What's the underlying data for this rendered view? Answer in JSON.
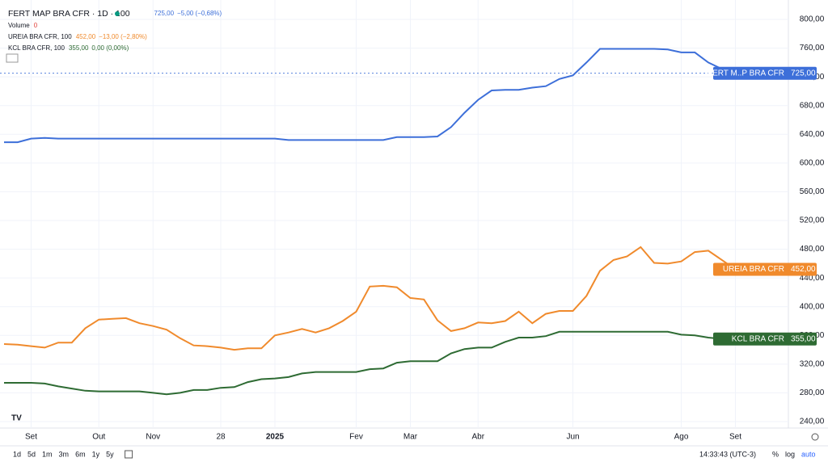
{
  "chart_data": {
    "type": "line",
    "legend": [
      {
        "title": "FERT MAP BRA CFR · 1D · 100",
        "last": "725,00",
        "change": "−5,00 (−0,68%)",
        "color": "#3d6fd9"
      },
      {
        "title": "Volume",
        "last": "0",
        "color": "#e0413c"
      },
      {
        "title": "UREIA BRA CFR, 100",
        "last": "452,00",
        "change": "−13,00 (−2,80%)",
        "color": "#f08a2c"
      },
      {
        "title": "KCL BRA CFR, 100",
        "last": "355,00",
        "change": "0,00 (0,00%)",
        "color": "#2e6b33"
      }
    ],
    "categories": [
      null,
      null,
      "Set",
      null,
      null,
      null,
      null,
      "Out",
      null,
      null,
      null,
      "Nov",
      null,
      null,
      null,
      null,
      "28",
      null,
      null,
      null,
      "2025",
      null,
      null,
      null,
      null,
      null,
      "Fev",
      null,
      null,
      null,
      "Mar",
      null,
      null,
      null,
      null,
      "Abr",
      null,
      null,
      null,
      null,
      null,
      null,
      "Jun",
      null,
      null,
      null,
      null,
      null,
      null,
      null,
      "Ago",
      null,
      null,
      null,
      "Set"
    ],
    "series": [
      {
        "name": "FERT M..P BRA CFR",
        "color": "#3d6fd9",
        "last_label": "725,00",
        "values": [
          629,
          629,
          634,
          635,
          634,
          634,
          634,
          634,
          634,
          634,
          634,
          634,
          634,
          634,
          634,
          634,
          634,
          634,
          634,
          634,
          634,
          632,
          632,
          632,
          632,
          632,
          632,
          632,
          632,
          636,
          636,
          636,
          637,
          650,
          670,
          688,
          701,
          702,
          702,
          705,
          707,
          717,
          722,
          740,
          759,
          759,
          759,
          759,
          759,
          758,
          754,
          754,
          740,
          731,
          725
        ]
      },
      {
        "name": "UREIA BRA CFR",
        "color": "#f08a2c",
        "last_label": "452,00",
        "values": [
          348,
          347,
          345,
          343,
          350,
          350,
          370,
          382,
          383,
          384,
          377,
          373,
          368,
          356,
          346,
          345,
          343,
          340,
          342,
          342,
          360,
          364,
          369,
          364,
          370,
          380,
          393,
          428,
          429,
          427,
          412,
          410,
          381,
          366,
          370,
          378,
          377,
          380,
          393,
          377,
          390,
          394,
          394,
          415,
          450,
          465,
          470,
          483,
          461,
          460,
          463,
          476,
          478,
          465,
          452
        ]
      },
      {
        "name": "KCL BRA CFR",
        "color": "#2e6b33",
        "last_label": "355,00",
        "values": [
          294,
          294,
          294,
          293,
          289,
          286,
          283,
          282,
          282,
          282,
          282,
          280,
          278,
          280,
          284,
          284,
          287,
          288,
          295,
          299,
          300,
          302,
          307,
          309,
          309,
          309,
          309,
          313,
          314,
          322,
          324,
          324,
          324,
          335,
          341,
          343,
          343,
          351,
          357,
          357,
          359,
          365,
          365,
          365,
          365,
          365,
          365,
          365,
          365,
          365,
          361,
          360,
          357,
          355,
          355
        ]
      }
    ],
    "ylim": [
      240,
      800
    ],
    "yticks": [
      {
        "value": 240,
        "label": "240,00"
      },
      {
        "value": 280,
        "label": "280,00"
      },
      {
        "value": 320,
        "label": "320,00"
      },
      {
        "value": 360,
        "label": "360,00"
      },
      {
        "value": 400,
        "label": "400,00"
      },
      {
        "value": 440,
        "label": "440,00"
      },
      {
        "value": 480,
        "label": "480,00"
      },
      {
        "value": 520,
        "label": "520,00"
      },
      {
        "value": 560,
        "label": "560,00"
      },
      {
        "value": 600,
        "label": "600,00"
      },
      {
        "value": 640,
        "label": "640,00"
      },
      {
        "value": 680,
        "label": "680,00"
      },
      {
        "value": 720,
        "label": "720,00"
      },
      {
        "value": 760,
        "label": "760,00"
      },
      {
        "value": 800,
        "label": "800,00"
      }
    ],
    "grid": true
  },
  "toolbar": {
    "ranges": [
      "1d",
      "5d",
      "1m",
      "3m",
      "6m",
      "1y",
      "5y"
    ],
    "time": "14:33:43 (UTC-3)",
    "options": [
      "%",
      "log",
      "auto"
    ]
  }
}
